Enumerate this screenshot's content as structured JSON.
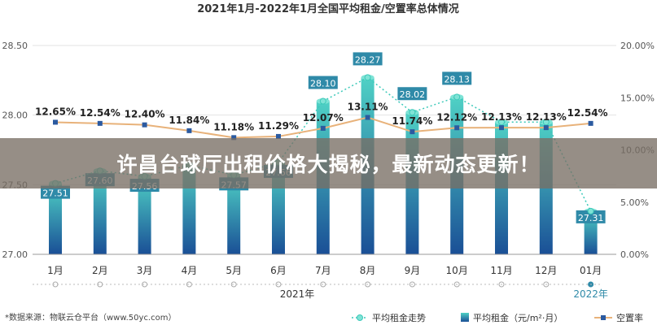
{
  "chart_data": {
    "type": "bar",
    "title": "2021年1月-2022年1月全国平均租金/空置率总体情况",
    "categories": [
      "1月",
      "2月",
      "3月",
      "4月",
      "5月",
      "6月",
      "7月",
      "8月",
      "9月",
      "10月",
      "11月",
      "12月",
      "01月"
    ],
    "year_labels": [
      "2021年",
      "2022年"
    ],
    "series": [
      {
        "name": "平均租金（元/m²·月）",
        "type": "bar",
        "values": [
          27.51,
          27.6,
          27.56,
          27.64,
          27.57,
          27.66,
          28.1,
          28.27,
          28.02,
          28.13,
          27.95,
          27.95,
          27.31
        ],
        "labels": [
          "27.51",
          "27.60",
          "27.56",
          "",
          "27.57",
          "27.66",
          "28.10",
          "28.27",
          "28.02",
          "28.13",
          "",
          "",
          "27.31"
        ]
      },
      {
        "name": "平均租金走势",
        "type": "line-dotted",
        "values": [
          27.51,
          27.6,
          27.56,
          27.64,
          27.57,
          27.66,
          28.1,
          28.27,
          28.02,
          28.13,
          27.95,
          27.95,
          27.31
        ]
      },
      {
        "name": "空置率",
        "type": "line",
        "values": [
          12.65,
          12.54,
          12.4,
          11.84,
          11.18,
          11.29,
          12.07,
          13.11,
          11.74,
          12.12,
          12.13,
          12.13,
          12.54
        ],
        "labels": [
          "12.65%",
          "12.54%",
          "12.40%",
          "11.84%",
          "11.18%",
          "11.29%",
          "12.07%",
          "13.11%",
          "11.74%",
          "12.12%",
          "12.13%",
          "12.13%",
          "12.54%"
        ]
      }
    ],
    "y_left": {
      "ylim": [
        27.0,
        28.5
      ],
      "ticks": [
        "27.00",
        "27.50",
        "28.00",
        "28.50"
      ]
    },
    "y_right": {
      "ylim": [
        0,
        20
      ],
      "ticks": [
        "0.00%",
        "5.00%",
        "10.00%",
        "15.00%",
        "20.00%"
      ]
    },
    "grid": true,
    "legend_position": "bottom-right",
    "colors": {
      "bar_top": "#4fd1c5",
      "bar_bottom": "#1a4f96",
      "trend": "#3cc9b9",
      "vacancy": "#e8b27a",
      "vacancy_marker": "#2b5aa0",
      "label_bg": "#2f8aa8",
      "year_2022": "#2f8aa8"
    }
  },
  "source_note": "*数据来源：物联云仓平台（www.50yc.com）",
  "overlay_title": "许昌台球厅出租价格大揭秘，最新动态更新！"
}
